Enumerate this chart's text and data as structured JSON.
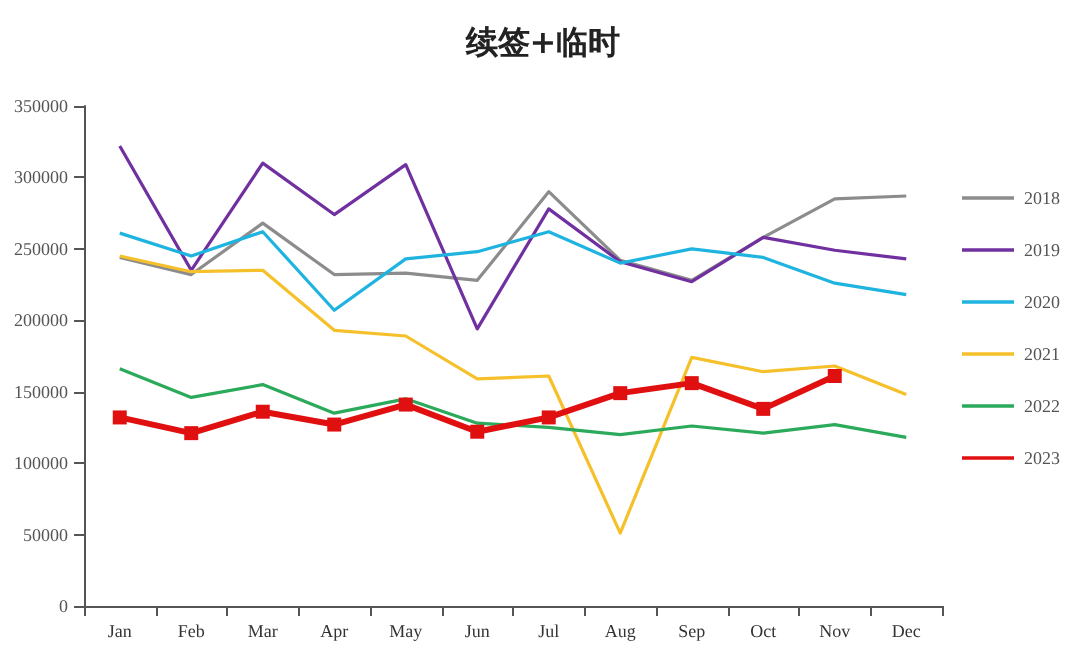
{
  "chart_data": {
    "type": "line",
    "title": "续签+临时",
    "categories": [
      "Jan",
      "Feb",
      "Mar",
      "Apr",
      "May",
      "Jun",
      "Jul",
      "Aug",
      "Sep",
      "Oct",
      "Nov",
      "Dec"
    ],
    "ylim": [
      0,
      350000
    ],
    "yticks": [
      0,
      50000,
      100000,
      150000,
      200000,
      250000,
      300000,
      350000
    ],
    "grid": false,
    "legend": "right",
    "series": [
      {
        "name": "2018",
        "color": "#8c8c8c",
        "marker": "none",
        "values": [
          244000,
          232000,
          268000,
          232000,
          233000,
          228000,
          290000,
          242000,
          228000,
          258000,
          285000,
          287000
        ]
      },
      {
        "name": "2019",
        "color": "#7030a0",
        "marker": "none",
        "values": [
          322000,
          235000,
          310000,
          274000,
          309000,
          194000,
          278000,
          241000,
          227000,
          258000,
          249000,
          243000
        ]
      },
      {
        "name": "2020",
        "color": "#1fb4e0",
        "marker": "none",
        "values": [
          261000,
          245000,
          262000,
          207000,
          243000,
          248000,
          262000,
          240000,
          250000,
          244000,
          226000,
          218000
        ]
      },
      {
        "name": "2021",
        "color": "#f5c02a",
        "marker": "none",
        "values": [
          245000,
          234000,
          235000,
          193000,
          189000,
          159000,
          161000,
          51000,
          174000,
          164000,
          168000,
          148000
        ]
      },
      {
        "name": "2022",
        "color": "#2aaa5a",
        "marker": "none",
        "values": [
          166000,
          146000,
          155000,
          135000,
          145000,
          128000,
          125000,
          120000,
          126000,
          121000,
          127000,
          118000
        ]
      },
      {
        "name": "2023",
        "color": "#e01010",
        "marker": "square",
        "values": [
          132000,
          121000,
          136000,
          127000,
          141000,
          122000,
          132000,
          149000,
          156000,
          138000,
          161000,
          null
        ]
      }
    ]
  }
}
